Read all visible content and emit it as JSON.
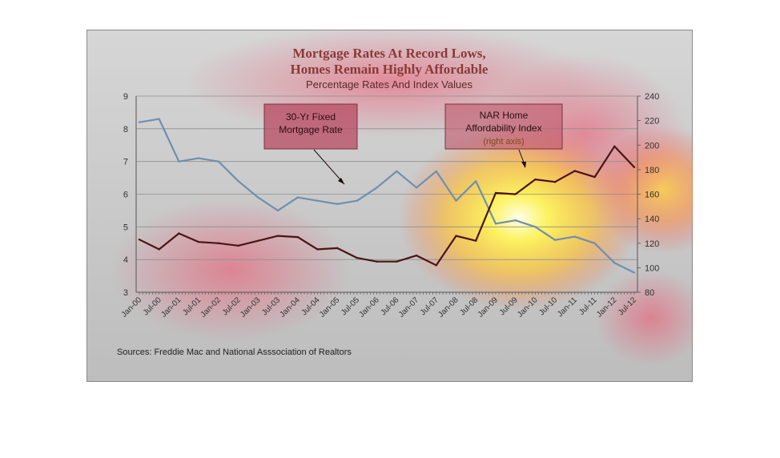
{
  "chart_data": {
    "type": "line",
    "title_lines": [
      "Mortgage Rates At Record Lows,",
      "Homes Remain Highly Affordable"
    ],
    "subtitle": "Percentage Rates And Index Values",
    "x": [
      "Jan-00",
      "Jul-00",
      "Jan-01",
      "Jul-01",
      "Jan-02",
      "Jul-02",
      "Jan-03",
      "Jul-03",
      "Jan-04",
      "Jul-04",
      "Jan-05",
      "Jul-05",
      "Jan-06",
      "Jul-06",
      "Jan-07",
      "Jul-07",
      "Jan-08",
      "Jul-08",
      "Jan-09",
      "Jul-09",
      "Jan-10",
      "Jul-10",
      "Jan-11",
      "Jul-11",
      "Jan-12",
      "Jul-12"
    ],
    "y_left_range": [
      3,
      9
    ],
    "y_left_ticks": [
      "3",
      "4",
      "5",
      "6",
      "7",
      "8",
      "9"
    ],
    "y_right_range": [
      80,
      240
    ],
    "y_right_ticks": [
      "80",
      "100",
      "120",
      "140",
      "160",
      "180",
      "200",
      "220",
      "240"
    ],
    "grid": true,
    "series": [
      {
        "name": "30-Yr Fixed Mortgage Rate",
        "axis": "left",
        "color": "#6f8fb0",
        "values": [
          8.2,
          8.3,
          7.0,
          7.1,
          7.0,
          6.4,
          5.9,
          5.5,
          5.9,
          5.8,
          5.7,
          5.8,
          6.2,
          6.7,
          6.2,
          6.7,
          5.8,
          6.4,
          5.1,
          5.2,
          5.0,
          4.6,
          4.7,
          4.5,
          3.9,
          3.6
        ]
      },
      {
        "name": "NAR Home Affordability Index",
        "axis": "right",
        "color": "#4a1414",
        "values": [
          123,
          115,
          128,
          121,
          120,
          118,
          122,
          126,
          125,
          115,
          116,
          108,
          105,
          105,
          110,
          102,
          126,
          122,
          161,
          160,
          172,
          170,
          179,
          174,
          199,
          182
        ]
      }
    ],
    "annotations": [
      {
        "label_lines": [
          "30-Yr Fixed",
          "Mortgage Rate"
        ]
      },
      {
        "label_lines": [
          "NAR Home",
          "Affordability Index"
        ],
        "note": "(right axis)"
      }
    ],
    "source": "Sources:  Freddie Mac and National Asssociation of Realtors"
  }
}
